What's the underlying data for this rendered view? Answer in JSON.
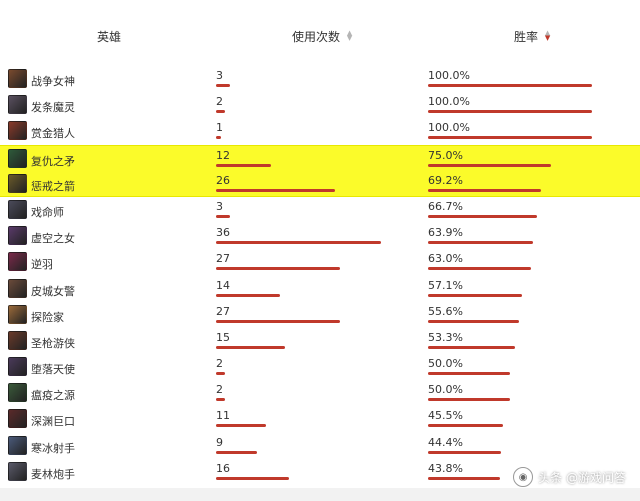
{
  "columns": {
    "hero": "英雄",
    "uses": "使用次数",
    "winrate": "胜率"
  },
  "rows": [
    {
      "name": "战争女神",
      "uses": "3",
      "uses_num": 3,
      "win": "100.0%",
      "win_num": 100.0,
      "avatar_color": "#7a4a2e",
      "highlight": false
    },
    {
      "name": "发条魔灵",
      "uses": "2",
      "uses_num": 2,
      "win": "100.0%",
      "win_num": 100.0,
      "avatar_color": "#5a5060",
      "highlight": false
    },
    {
      "name": "赏金猎人",
      "uses": "1",
      "uses_num": 1,
      "win": "100.0%",
      "win_num": 100.0,
      "avatar_color": "#8a3a2a",
      "highlight": false
    },
    {
      "name": "复仇之矛",
      "uses": "12",
      "uses_num": 12,
      "win": "75.0%",
      "win_num": 75.0,
      "avatar_color": "#2e5a3a",
      "highlight": true
    },
    {
      "name": "惩戒之箭",
      "uses": "26",
      "uses_num": 26,
      "win": "69.2%",
      "win_num": 69.2,
      "avatar_color": "#6a5a2a",
      "highlight": true
    },
    {
      "name": "戏命师",
      "uses": "3",
      "uses_num": 3,
      "win": "66.7%",
      "win_num": 66.7,
      "avatar_color": "#4a4a5a",
      "highlight": false
    },
    {
      "name": "虚空之女",
      "uses": "36",
      "uses_num": 36,
      "win": "63.9%",
      "win_num": 63.9,
      "avatar_color": "#5a3a6a",
      "highlight": false
    },
    {
      "name": "逆羽",
      "uses": "27",
      "uses_num": 27,
      "win": "63.0%",
      "win_num": 63.0,
      "avatar_color": "#7a2a4a",
      "highlight": false
    },
    {
      "name": "皮城女警",
      "uses": "14",
      "uses_num": 14,
      "win": "57.1%",
      "win_num": 57.1,
      "avatar_color": "#6a4a3a",
      "highlight": false
    },
    {
      "name": "探险家",
      "uses": "27",
      "uses_num": 27,
      "win": "55.6%",
      "win_num": 55.6,
      "avatar_color": "#9a6a3a",
      "highlight": false
    },
    {
      "name": "圣枪游侠",
      "uses": "15",
      "uses_num": 15,
      "win": "53.3%",
      "win_num": 53.3,
      "avatar_color": "#6a3a2a",
      "highlight": false
    },
    {
      "name": "堕落天使",
      "uses": "2",
      "uses_num": 2,
      "win": "50.0%",
      "win_num": 50.0,
      "avatar_color": "#4a3a5a",
      "highlight": false
    },
    {
      "name": "瘟疫之源",
      "uses": "2",
      "uses_num": 2,
      "win": "50.0%",
      "win_num": 50.0,
      "avatar_color": "#3a5a3a",
      "highlight": false
    },
    {
      "name": "深渊巨口",
      "uses": "11",
      "uses_num": 11,
      "win": "45.5%",
      "win_num": 45.5,
      "avatar_color": "#5a2a2a",
      "highlight": false
    },
    {
      "name": "寒冰射手",
      "uses": "9",
      "uses_num": 9,
      "win": "44.4%",
      "win_num": 44.4,
      "avatar_color": "#4a5a7a",
      "highlight": false
    },
    {
      "name": "麦林炮手",
      "uses": "16",
      "uses_num": 16,
      "win": "43.8%",
      "win_num": 43.8,
      "avatar_color": "#5a5a6a",
      "highlight": false
    }
  ],
  "accent_color": "#c0392b",
  "highlight_color": "#fbfb2a",
  "sort": {
    "active_column": "winrate",
    "direction": "desc"
  },
  "watermark": "头条 @游戏问答"
}
